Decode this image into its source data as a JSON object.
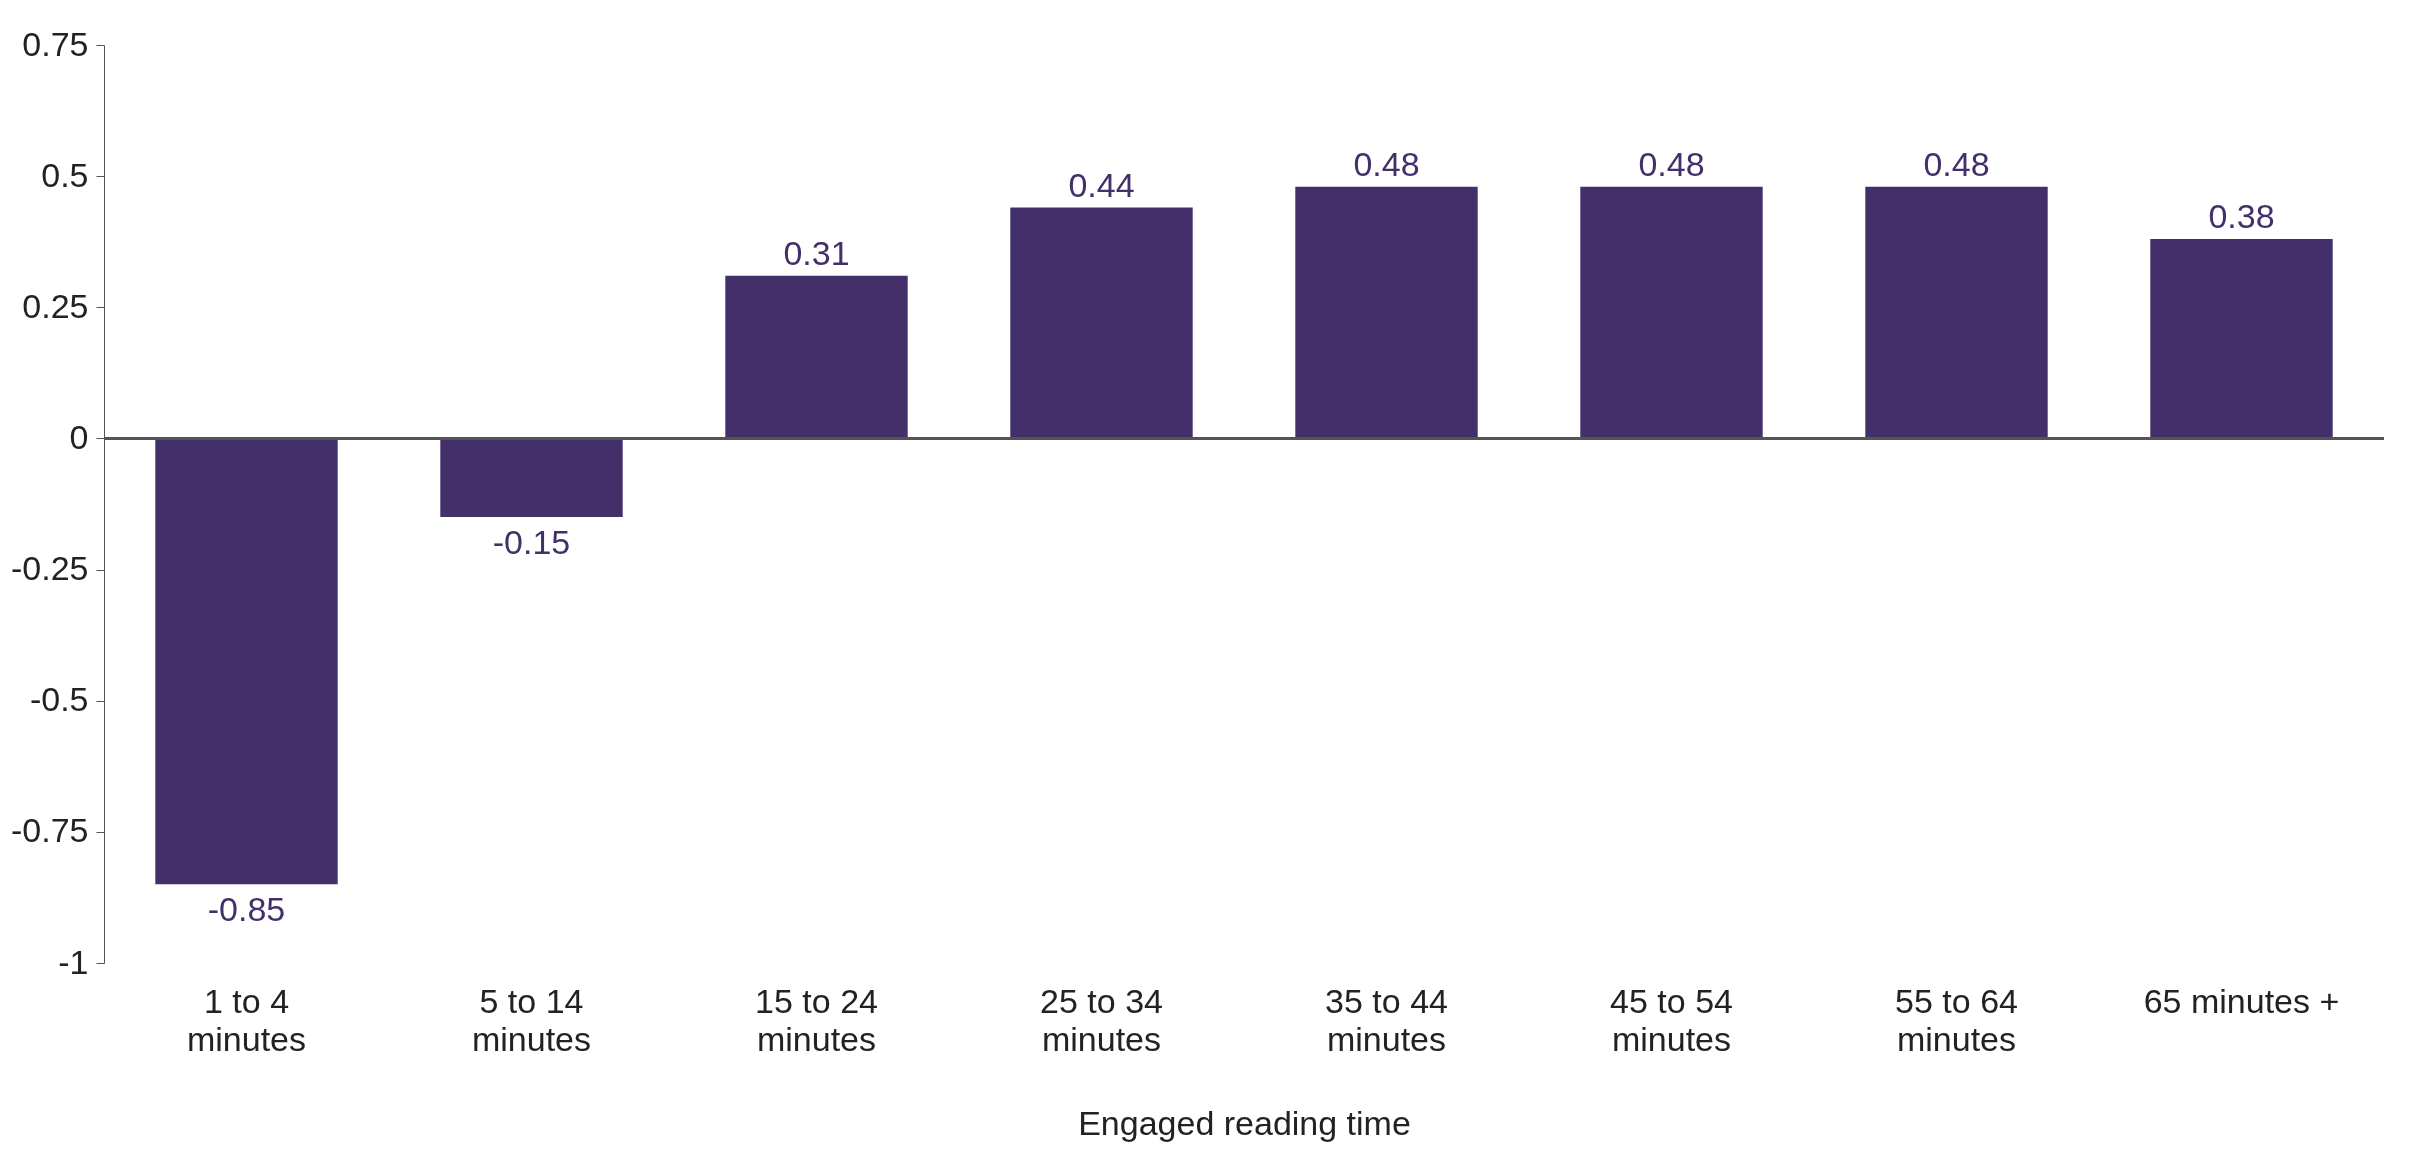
{
  "chart_data": {
    "type": "bar",
    "xlabel": "Engaged reading time",
    "categories": [
      "1 to 4\nminutes",
      "5 to 14\nminutes",
      "15 to 24\nminutes",
      "25 to 34\nminutes",
      "35 to 44\nminutes",
      "45 to 54\nminutes",
      "55 to 64\nminutes",
      "65 minutes +"
    ],
    "values": [
      -0.85,
      -0.15,
      0.31,
      0.44,
      0.48,
      0.48,
      0.48,
      0.38
    ],
    "color": "#43306a",
    "ylim": [
      -1,
      0.75
    ],
    "yticks": [
      -1,
      -0.75,
      -0.5,
      -0.25,
      0,
      0.25,
      0.5,
      0.75
    ],
    "ref_lines": [
      {
        "axis": "y",
        "value": 0,
        "color": "#555555"
      }
    ],
    "grid": false,
    "data_labels": true
  }
}
